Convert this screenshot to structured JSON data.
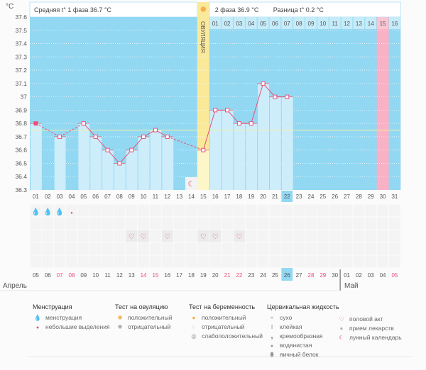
{
  "header": {
    "unit": "°C",
    "phase1": "Средняя t° 1 фаза 36.7 °C",
    "phase2": "2 фаза 36.9 °C",
    "diff": "Разница t° 0.2 °C",
    "ovulation": "ОВУЛЯЦИЯ"
  },
  "colors": {
    "plot_bg": "#93d8f2",
    "bar": "#cdedfb",
    "line": "#e8507a",
    "ovulation": "#fbe99a",
    "ovulation_light": "#fdf6c8",
    "pink": "#f9b1c5",
    "coverline": "#f6f0a0"
  },
  "chart_data": {
    "type": "line",
    "ylabel": "°C",
    "ylim": [
      36.3,
      37.6
    ],
    "yticks": [
      "37.6",
      "37.5",
      "37.4",
      "37.3",
      "37.2",
      "37.1",
      "37",
      "36.9",
      "36.8",
      "36.7",
      "36.6",
      "36.5",
      "36.4",
      "36.3"
    ],
    "cycle_days": [
      "01",
      "02",
      "03",
      "04",
      "05",
      "06",
      "07",
      "08",
      "09",
      "10",
      "11",
      "12",
      "13",
      "14",
      "15",
      "16",
      "17",
      "18",
      "19",
      "20",
      "21",
      "22",
      "23",
      "24",
      "25",
      "26",
      "27",
      "28",
      "29",
      "30",
      "31"
    ],
    "temperatures": [
      36.8,
      null,
      36.7,
      null,
      36.8,
      36.7,
      36.6,
      36.5,
      36.6,
      36.7,
      36.75,
      36.7,
      null,
      null,
      36.6,
      36.9,
      36.9,
      36.8,
      36.8,
      37.1,
      37.0,
      37.0,
      null,
      null,
      null,
      null,
      null,
      null,
      null,
      null,
      null
    ],
    "coverline": 36.75,
    "ovulation_day": 15,
    "current_day": 22,
    "expected_period_day": 30,
    "phase2_days": [
      "01",
      "02",
      "03",
      "04",
      "05",
      "06",
      "07",
      "08",
      "09",
      "10",
      "11",
      "12",
      "13",
      "14",
      "15",
      "16"
    ],
    "dates": [
      "05",
      "06",
      "07",
      "08",
      "09",
      "10",
      "11",
      "12",
      "13",
      "14",
      "15",
      "16",
      "17",
      "18",
      "19",
      "20",
      "21",
      "22",
      "23",
      "24",
      "25",
      "26",
      "27",
      "28",
      "29",
      "30",
      "01",
      "02",
      "03",
      "04",
      "05"
    ],
    "weekend_date_idx": [
      2,
      3,
      9,
      10,
      16,
      17,
      23,
      24,
      30
    ],
    "months": [
      "Апрель",
      "Май"
    ],
    "menstruation": [
      "heavy",
      "heavy",
      "heavy",
      "light"
    ],
    "intercourse_days": [
      9,
      10,
      12,
      15,
      16,
      18
    ],
    "moon_days": [
      14
    ]
  },
  "legend": [
    {
      "title": "Менструация",
      "items": [
        {
          "icon": "drops-icon",
          "label": "менструация"
        },
        {
          "icon": "drop-icon",
          "label": "небольшие выделения"
        }
      ]
    },
    {
      "title": "Тест на овуляцию",
      "items": [
        {
          "icon": "sun-positive-icon",
          "label": "положительный"
        },
        {
          "icon": "sun-negative-icon",
          "label": "отрицательный"
        }
      ]
    },
    {
      "title": "Тест на беременность",
      "items": [
        {
          "icon": "test-positive-icon",
          "label": "положительный"
        },
        {
          "icon": "test-negative-icon",
          "label": "отрицательный"
        },
        {
          "icon": "test-weak-icon",
          "label": "слабоположительный"
        }
      ]
    },
    {
      "title": "Цервикальная жидкость",
      "items": [
        {
          "icon": "dry-icon",
          "label": "сухо"
        },
        {
          "icon": "sticky-icon",
          "label": "клейкая"
        },
        {
          "icon": "creamy-icon",
          "label": "кремообразная"
        },
        {
          "icon": "watery-icon",
          "label": "водянистая"
        },
        {
          "icon": "eggwhite-icon",
          "label": "яичный белок"
        }
      ]
    },
    {
      "title": "",
      "items": [
        {
          "icon": "heart-icon",
          "label": "половой акт"
        },
        {
          "icon": "pill-icon",
          "label": "прием лекарств"
        },
        {
          "icon": "moon-icon",
          "label": "лунный календарь"
        }
      ]
    }
  ]
}
